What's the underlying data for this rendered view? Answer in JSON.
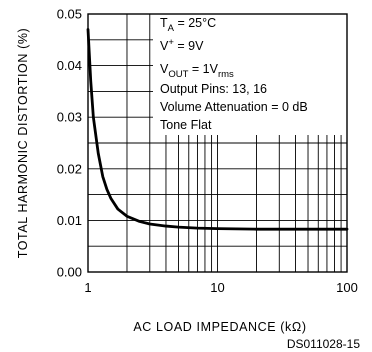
{
  "chart_data": {
    "type": "line",
    "xscale": "log",
    "xlim": [
      1,
      100
    ],
    "ylim": [
      0,
      0.05
    ],
    "x_ticks": [
      {
        "value": 1,
        "label": "1"
      },
      {
        "value": 10,
        "label": "10"
      },
      {
        "value": 100,
        "label": "100"
      }
    ],
    "y_ticks": [
      {
        "value": 0.0,
        "label": "0.00"
      },
      {
        "value": 0.01,
        "label": "0.01"
      },
      {
        "value": 0.02,
        "label": "0.02"
      },
      {
        "value": 0.03,
        "label": "0.03"
      },
      {
        "value": 0.04,
        "label": "0.04"
      },
      {
        "value": 0.05,
        "label": "0.05"
      }
    ],
    "xlabel": "AC LOAD IMPEDANCE (kΩ)",
    "ylabel": "TOTAL HARMONIC DISTORTION (%)",
    "grid": true,
    "series": [
      {
        "x": [
          1.0,
          1.05,
          1.1,
          1.2,
          1.3,
          1.4,
          1.5,
          1.7,
          2.0,
          2.5,
          3,
          4,
          5,
          7,
          10,
          20,
          50,
          100
        ],
        "y": [
          0.047,
          0.037,
          0.03,
          0.023,
          0.0185,
          0.016,
          0.0143,
          0.0122,
          0.0108,
          0.0098,
          0.0093,
          0.0089,
          0.0087,
          0.0085,
          0.0084,
          0.0083,
          0.0083,
          0.0083
        ]
      }
    ],
    "annotations": {
      "ta": {
        "main": "T",
        "sub": "A",
        "rest": " = 25°C"
      },
      "vplus": {
        "main": "V",
        "sup": "+",
        "rest": " = 9V"
      },
      "vout": {
        "main": "V",
        "sub": "OUT",
        "mid": " = 1V",
        "sub2": "rms"
      },
      "pins": "Output Pins: 13, 16",
      "volume": "Volume Attenuation = 0 dB",
      "tone": "Tone Flat"
    },
    "figure_code": "DS011028-15",
    "colors": {
      "line": "#000000",
      "grid": "#000000",
      "background": "#ffffff"
    }
  }
}
